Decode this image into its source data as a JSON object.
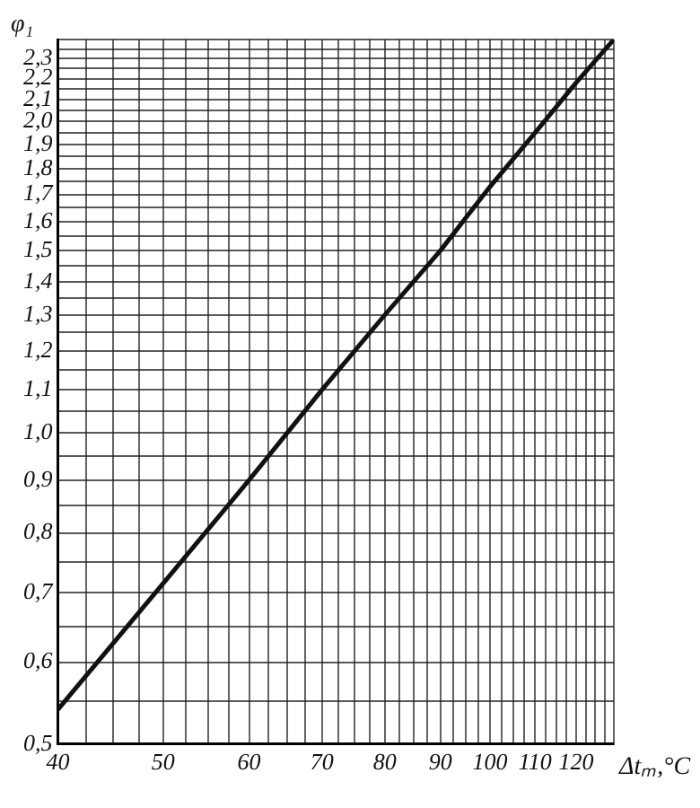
{
  "chart_data": {
    "type": "line",
    "xlabel": "Δtₘ,°C",
    "ylabel": "φ₁",
    "log": "xy",
    "grid": true,
    "legend": false,
    "marker": "none",
    "line_style": "solid",
    "xlim": [
      40,
      130
    ],
    "ylim": [
      0.5,
      2.4
    ],
    "xticks": [
      40,
      {
        "value": 42.5,
        "label": null
      },
      {
        "value": 45,
        "label": null
      },
      {
        "value": 47.5,
        "label": null
      },
      50,
      {
        "value": 52.5,
        "label": null
      },
      {
        "value": 55,
        "label": null
      },
      {
        "value": 57.5,
        "label": null
      },
      60,
      {
        "value": 62.5,
        "label": null
      },
      {
        "value": 65,
        "label": null
      },
      {
        "value": 67.5,
        "label": null
      },
      70,
      {
        "value": 72.5,
        "label": null
      },
      {
        "value": 75,
        "label": null
      },
      {
        "value": 77.5,
        "label": null
      },
      80,
      {
        "value": 82.5,
        "label": null
      },
      {
        "value": 85,
        "label": null
      },
      {
        "value": 87.5,
        "label": null
      },
      90,
      {
        "value": 92.5,
        "label": null
      },
      {
        "value": 95,
        "label": null
      },
      {
        "value": 97.5,
        "label": null
      },
      100,
      {
        "value": 102.5,
        "label": null
      },
      {
        "value": 105,
        "label": null
      },
      {
        "value": 107.5,
        "label": null
      },
      110,
      {
        "value": 112.5,
        "label": null
      },
      {
        "value": 115,
        "label": null
      },
      {
        "value": 117.5,
        "label": null
      },
      120,
      {
        "value": 122.5,
        "label": null
      },
      {
        "value": 125,
        "label": null
      },
      {
        "value": 127.5,
        "label": null
      },
      {
        "value": 130,
        "label": null
      }
    ],
    "yticks": [
      {
        "value": 0.5,
        "label": "0,5"
      },
      {
        "value": 0.55,
        "label": null
      },
      {
        "value": 0.6,
        "label": "0,6"
      },
      {
        "value": 0.65,
        "label": null
      },
      {
        "value": 0.7,
        "label": "0,7"
      },
      {
        "value": 0.75,
        "label": null
      },
      {
        "value": 0.8,
        "label": "0,8"
      },
      {
        "value": 0.85,
        "label": null
      },
      {
        "value": 0.9,
        "label": "0,9"
      },
      {
        "value": 0.95,
        "label": null
      },
      {
        "value": 1.0,
        "label": "1,0"
      },
      {
        "value": 1.05,
        "label": null
      },
      {
        "value": 1.1,
        "label": "1,1"
      },
      {
        "value": 1.15,
        "label": null
      },
      {
        "value": 1.2,
        "label": "1,2"
      },
      {
        "value": 1.25,
        "label": null
      },
      {
        "value": 1.3,
        "label": "1,3"
      },
      {
        "value": 1.35,
        "label": null
      },
      {
        "value": 1.4,
        "label": "1,4"
      },
      {
        "value": 1.45,
        "label": null
      },
      {
        "value": 1.5,
        "label": "1,5"
      },
      {
        "value": 1.55,
        "label": null
      },
      {
        "value": 1.6,
        "label": "1,6"
      },
      {
        "value": 1.65,
        "label": null
      },
      {
        "value": 1.7,
        "label": "1,7"
      },
      {
        "value": 1.75,
        "label": null
      },
      {
        "value": 1.8,
        "label": "1,8"
      },
      {
        "value": 1.85,
        "label": null
      },
      {
        "value": 1.9,
        "label": "1,9"
      },
      {
        "value": 1.95,
        "label": null
      },
      {
        "value": 2.0,
        "label": "2,0"
      },
      {
        "value": 2.05,
        "label": null
      },
      {
        "value": 2.1,
        "label": "2,1"
      },
      {
        "value": 2.15,
        "label": null
      },
      {
        "value": 2.2,
        "label": "2,2"
      },
      {
        "value": 2.25,
        "label": null
      },
      {
        "value": 2.3,
        "label": "2,3"
      },
      {
        "value": 2.35,
        "label": null
      },
      {
        "value": 2.4,
        "label": null
      }
    ],
    "series": [
      {
        "color": "#111111",
        "x": [
          40,
          50,
          60,
          70,
          80,
          90,
          100,
          110,
          120,
          130
        ],
        "values": [
          0.54,
          0.715,
          0.9,
          1.1,
          1.3,
          1.5,
          1.73,
          1.95,
          2.18,
          2.4
        ]
      }
    ]
  }
}
